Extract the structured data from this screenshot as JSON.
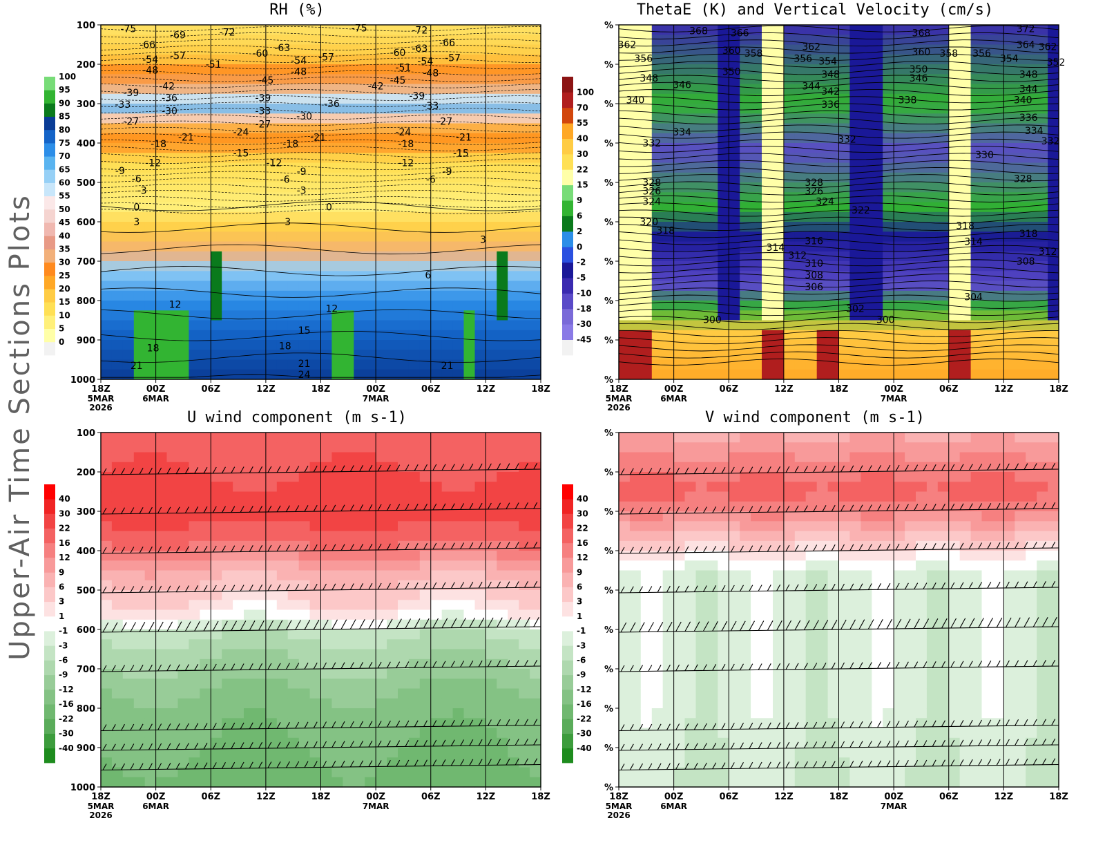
{
  "figure": {
    "side_title": "Upper-Air Time Sections Plots"
  },
  "time_axis": {
    "ticks": [
      "18Z",
      "00Z",
      "06Z",
      "12Z",
      "18Z",
      "00Z",
      "06Z",
      "12Z",
      "18Z"
    ],
    "date_labels": [
      {
        "tick": 0,
        "lines": [
          "5MAR",
          "2026"
        ]
      },
      {
        "tick": 1,
        "lines": [
          "6MAR"
        ]
      },
      {
        "tick": 5,
        "lines": [
          "7MAR"
        ]
      }
    ]
  },
  "chart_data": [
    {
      "id": "rh",
      "type": "heatmap",
      "title": "RH (%)",
      "y_ticks": [
        "100",
        "200",
        "300",
        "400",
        "500",
        "600",
        "700",
        "800",
        "900",
        "1000"
      ],
      "colorbar": {
        "side": "left",
        "levels": [
          "0",
          "5",
          "10",
          "15",
          "20",
          "25",
          "30",
          "35",
          "40",
          "45",
          "50",
          "55",
          "60",
          "65",
          "70",
          "75",
          "80",
          "85",
          "90",
          "95",
          "100"
        ],
        "colors": [
          "#f2f2f2",
          "#ffffa8",
          "#fff07a",
          "#ffe055",
          "#ffcc44",
          "#ffa826",
          "#ff8a1e",
          "#f2b07a",
          "#e89a86",
          "#f0b8b0",
          "#f5d4d0",
          "#fbe8e8",
          "#c8e6fa",
          "#96d0f6",
          "#5ab4f0",
          "#2c8ee8",
          "#1464c8",
          "#0a3c96",
          "#0a7a1c",
          "#32b432",
          "#78dc78"
        ]
      },
      "contour_labels": [
        {
          "t": 0.5,
          "p": 110,
          "text": "-75"
        },
        {
          "t": 1.4,
          "p": 125,
          "text": "-69"
        },
        {
          "t": 2.3,
          "p": 118,
          "text": "-72"
        },
        {
          "t": 4.7,
          "p": 108,
          "text": "-75"
        },
        {
          "t": 5.8,
          "p": 113,
          "text": "-72"
        },
        {
          "t": 0.85,
          "p": 150,
          "text": "-66"
        },
        {
          "t": 6.3,
          "p": 145,
          "text": "-66"
        },
        {
          "t": 2.9,
          "p": 172,
          "text": "-60"
        },
        {
          "t": 3.3,
          "p": 158,
          "text": "-63"
        },
        {
          "t": 5.4,
          "p": 170,
          "text": "-60"
        },
        {
          "t": 5.8,
          "p": 160,
          "text": "-63"
        },
        {
          "t": 0.9,
          "p": 188,
          "text": "-54"
        },
        {
          "t": 1.4,
          "p": 178,
          "text": "-57"
        },
        {
          "t": 2.05,
          "p": 200,
          "text": "-51"
        },
        {
          "t": 3.6,
          "p": 190,
          "text": "-54"
        },
        {
          "t": 4.1,
          "p": 182,
          "text": "-57"
        },
        {
          "t": 5.5,
          "p": 208,
          "text": "-51"
        },
        {
          "t": 6.4,
          "p": 183,
          "text": "-57"
        },
        {
          "t": 0.9,
          "p": 215,
          "text": "-48"
        },
        {
          "t": 3.0,
          "p": 240,
          "text": "-45"
        },
        {
          "t": 3.6,
          "p": 218,
          "text": "-48"
        },
        {
          "t": 5.4,
          "p": 240,
          "text": "-45"
        },
        {
          "t": 6.0,
          "p": 222,
          "text": "-48"
        },
        {
          "t": 5.9,
          "p": 192,
          "text": "-54"
        },
        {
          "t": 5.0,
          "p": 255,
          "text": "-42"
        },
        {
          "t": 1.2,
          "p": 255,
          "text": "-42"
        },
        {
          "t": 0.55,
          "p": 272,
          "text": "-39"
        },
        {
          "t": 1.25,
          "p": 285,
          "text": "-36"
        },
        {
          "t": 2.95,
          "p": 285,
          "text": "-39"
        },
        {
          "t": 4.2,
          "p": 300,
          "text": "-36"
        },
        {
          "t": 5.75,
          "p": 280,
          "text": "-39"
        },
        {
          "t": 0.4,
          "p": 302,
          "text": "-33"
        },
        {
          "t": 1.25,
          "p": 318,
          "text": "-30"
        },
        {
          "t": 2.95,
          "p": 318,
          "text": "-33"
        },
        {
          "t": 3.7,
          "p": 332,
          "text": "-30"
        },
        {
          "t": 6.0,
          "p": 305,
          "text": "-33"
        },
        {
          "t": 6.25,
          "p": 345,
          "text": "-27"
        },
        {
          "t": 0.55,
          "p": 345,
          "text": "-27"
        },
        {
          "t": 2.95,
          "p": 352,
          "text": "-27"
        },
        {
          "t": 2.55,
          "p": 372,
          "text": "-24"
        },
        {
          "t": 5.5,
          "p": 372,
          "text": "-24"
        },
        {
          "t": 1.55,
          "p": 385,
          "text": "-21"
        },
        {
          "t": 3.95,
          "p": 385,
          "text": "-21"
        },
        {
          "t": 6.6,
          "p": 385,
          "text": "-21"
        },
        {
          "t": 1.05,
          "p": 402,
          "text": "-18"
        },
        {
          "t": 3.45,
          "p": 402,
          "text": "-18"
        },
        {
          "t": 5.55,
          "p": 402,
          "text": "-18"
        },
        {
          "t": 2.55,
          "p": 425,
          "text": "-15"
        },
        {
          "t": 6.55,
          "p": 425,
          "text": "-15"
        },
        {
          "t": 0.95,
          "p": 450,
          "text": "-12"
        },
        {
          "t": 3.15,
          "p": 450,
          "text": "-12"
        },
        {
          "t": 5.55,
          "p": 450,
          "text": "-12"
        },
        {
          "t": 0.35,
          "p": 470,
          "text": "-9"
        },
        {
          "t": 3.65,
          "p": 472,
          "text": "-9"
        },
        {
          "t": 6.3,
          "p": 472,
          "text": "-9"
        },
        {
          "t": 0.65,
          "p": 490,
          "text": "-6"
        },
        {
          "t": 3.35,
          "p": 492,
          "text": "-6"
        },
        {
          "t": 6.0,
          "p": 492,
          "text": "-6"
        },
        {
          "t": 0.75,
          "p": 520,
          "text": "-3"
        },
        {
          "t": 3.65,
          "p": 520,
          "text": "-3"
        },
        {
          "t": 0.65,
          "p": 562,
          "text": "0"
        },
        {
          "t": 4.15,
          "p": 562,
          "text": "0"
        },
        {
          "t": 0.65,
          "p": 600,
          "text": "3"
        },
        {
          "t": 3.4,
          "p": 600,
          "text": "3"
        },
        {
          "t": 6.95,
          "p": 645,
          "text": "3"
        },
        {
          "t": 5.95,
          "p": 735,
          "text": "6"
        },
        {
          "t": 1.35,
          "p": 810,
          "text": "12"
        },
        {
          "t": 4.2,
          "p": 820,
          "text": "12"
        },
        {
          "t": 3.7,
          "p": 875,
          "text": "15"
        },
        {
          "t": 0.95,
          "p": 920,
          "text": "18"
        },
        {
          "t": 3.35,
          "p": 915,
          "text": "18"
        },
        {
          "t": 0.65,
          "p": 965,
          "text": "21"
        },
        {
          "t": 3.7,
          "p": 960,
          "text": "21"
        },
        {
          "t": 6.3,
          "p": 965,
          "text": "21"
        },
        {
          "t": 3.7,
          "p": 988,
          "text": "24"
        }
      ]
    },
    {
      "id": "thetae",
      "type": "heatmap",
      "title": "ThetaE (K) and Vertical Velocity (cm/s)",
      "y_ticks": [
        "%",
        "%",
        "%",
        "%",
        "%",
        "%",
        "%",
        "%",
        "%",
        "%"
      ],
      "colorbar": {
        "side": "left",
        "levels": [
          "-45",
          "-30",
          "-18",
          "-10",
          "-5",
          "-2",
          "0",
          "2",
          "6",
          "9",
          "15",
          "22",
          "30",
          "40",
          "55",
          "70",
          "100"
        ],
        "colors": [
          "#f2f2f2",
          "#8a7ae6",
          "#7a6ad8",
          "#5a4ac8",
          "#3a2ab0",
          "#1a1898",
          "#2a50e0",
          "#2c8ee8",
          "#0a7a1c",
          "#32b432",
          "#78dc78",
          "#ffffa8",
          "#ffe055",
          "#ffcc44",
          "#ffa826",
          "#d2460c",
          "#b01e1e",
          "#8c1414"
        ]
      },
      "contour_labels": [
        {
          "t": 1.45,
          "p": 115,
          "text": "368"
        },
        {
          "t": 2.2,
          "p": 120,
          "text": "366"
        },
        {
          "t": 5.5,
          "p": 120,
          "text": "368"
        },
        {
          "t": 7.4,
          "p": 110,
          "text": "372"
        },
        {
          "t": 0.15,
          "p": 150,
          "text": "362"
        },
        {
          "t": 0.45,
          "p": 185,
          "text": "356"
        },
        {
          "t": 2.05,
          "p": 165,
          "text": "360"
        },
        {
          "t": 2.45,
          "p": 172,
          "text": "358"
        },
        {
          "t": 3.5,
          "p": 155,
          "text": "362"
        },
        {
          "t": 3.35,
          "p": 185,
          "text": "356"
        },
        {
          "t": 3.8,
          "p": 192,
          "text": "354"
        },
        {
          "t": 5.5,
          "p": 168,
          "text": "360"
        },
        {
          "t": 6.0,
          "p": 172,
          "text": "358"
        },
        {
          "t": 6.6,
          "p": 172,
          "text": "356"
        },
        {
          "t": 7.1,
          "p": 185,
          "text": "354"
        },
        {
          "t": 7.4,
          "p": 150,
          "text": "364"
        },
        {
          "t": 7.8,
          "p": 155,
          "text": "362"
        },
        {
          "t": 7.95,
          "p": 195,
          "text": "352"
        },
        {
          "t": 2.05,
          "p": 218,
          "text": "350"
        },
        {
          "t": 3.85,
          "p": 225,
          "text": "348"
        },
        {
          "t": 5.45,
          "p": 212,
          "text": "350"
        },
        {
          "t": 5.45,
          "p": 235,
          "text": "346"
        },
        {
          "t": 7.45,
          "p": 225,
          "text": "348"
        },
        {
          "t": 7.45,
          "p": 262,
          "text": "344"
        },
        {
          "t": 0.55,
          "p": 235,
          "text": "348"
        },
        {
          "t": 1.15,
          "p": 252,
          "text": "346"
        },
        {
          "t": 3.5,
          "p": 255,
          "text": "344"
        },
        {
          "t": 3.85,
          "p": 268,
          "text": "342"
        },
        {
          "t": 5.25,
          "p": 290,
          "text": "338"
        },
        {
          "t": 3.85,
          "p": 302,
          "text": "336"
        },
        {
          "t": 7.35,
          "p": 290,
          "text": "340"
        },
        {
          "t": 0.3,
          "p": 290,
          "text": "340"
        },
        {
          "t": 7.45,
          "p": 335,
          "text": "336"
        },
        {
          "t": 7.55,
          "p": 368,
          "text": "334"
        },
        {
          "t": 1.15,
          "p": 372,
          "text": "334"
        },
        {
          "t": 0.6,
          "p": 400,
          "text": "332"
        },
        {
          "t": 4.15,
          "p": 390,
          "text": "332"
        },
        {
          "t": 7.85,
          "p": 395,
          "text": "332"
        },
        {
          "t": 6.65,
          "p": 430,
          "text": "330"
        },
        {
          "t": 0.6,
          "p": 500,
          "text": "328"
        },
        {
          "t": 3.55,
          "p": 500,
          "text": "328"
        },
        {
          "t": 7.35,
          "p": 490,
          "text": "328"
        },
        {
          "t": 0.6,
          "p": 522,
          "text": "326"
        },
        {
          "t": 3.55,
          "p": 522,
          "text": "326"
        },
        {
          "t": 0.6,
          "p": 548,
          "text": "324"
        },
        {
          "t": 3.75,
          "p": 548,
          "text": "324"
        },
        {
          "t": 4.4,
          "p": 570,
          "text": "322"
        },
        {
          "t": 0.55,
          "p": 600,
          "text": "320"
        },
        {
          "t": 0.85,
          "p": 622,
          "text": "318"
        },
        {
          "t": 6.3,
          "p": 610,
          "text": "318"
        },
        {
          "t": 7.45,
          "p": 630,
          "text": "318"
        },
        {
          "t": 6.45,
          "p": 650,
          "text": "314"
        },
        {
          "t": 2.85,
          "p": 665,
          "text": "314"
        },
        {
          "t": 3.55,
          "p": 648,
          "text": "316"
        },
        {
          "t": 3.25,
          "p": 685,
          "text": "312"
        },
        {
          "t": 7.8,
          "p": 675,
          "text": "312"
        },
        {
          "t": 7.4,
          "p": 700,
          "text": "308"
        },
        {
          "t": 3.55,
          "p": 705,
          "text": "310"
        },
        {
          "t": 3.55,
          "p": 735,
          "text": "308"
        },
        {
          "t": 3.55,
          "p": 765,
          "text": "306"
        },
        {
          "t": 6.45,
          "p": 790,
          "text": "304"
        },
        {
          "t": 4.3,
          "p": 820,
          "text": "302"
        },
        {
          "t": 1.7,
          "p": 848,
          "text": "300"
        },
        {
          "t": 4.85,
          "p": 848,
          "text": "300"
        }
      ]
    },
    {
      "id": "u",
      "type": "heatmap",
      "title": "U wind component (m s-1)",
      "y_ticks": [
        "100",
        "200",
        "300",
        "400",
        "500",
        "600",
        "700",
        "800",
        "900",
        "1000"
      ],
      "colorbar": {
        "side": "left",
        "levels": [
          "-40",
          "-30",
          "-22",
          "-16",
          "-12",
          "-9",
          "-6",
          "-3",
          "-1",
          "1",
          "3",
          "6",
          "9",
          "12",
          "16",
          "22",
          "30",
          "40"
        ],
        "colors": [
          "#1e8c1e",
          "#3c9c3c",
          "#5aac5a",
          "#70b870",
          "#84c284",
          "#98cc98",
          "#aed8ae",
          "#c4e4c4",
          "#dcf0dc",
          "#ffffff",
          "#fde2e2",
          "#fcc8c8",
          "#fab2b2",
          "#f89a9a",
          "#f68080",
          "#f46262",
          "#f24444",
          "#f02424",
          "#ff0000"
        ]
      }
    },
    {
      "id": "v",
      "type": "heatmap",
      "title": "V wind component (m s-1)",
      "y_ticks": [
        "%",
        "%",
        "%",
        "%",
        "%",
        "%",
        "%",
        "%",
        "%",
        "%"
      ],
      "colorbar": {
        "side": "left",
        "levels": [
          "-40",
          "-30",
          "-22",
          "-16",
          "-12",
          "-9",
          "-6",
          "-3",
          "-1",
          "1",
          "3",
          "6",
          "9",
          "12",
          "16",
          "22",
          "30",
          "40"
        ],
        "colors": [
          "#1e8c1e",
          "#3c9c3c",
          "#5aac5a",
          "#70b870",
          "#84c284",
          "#98cc98",
          "#aed8ae",
          "#c4e4c4",
          "#dcf0dc",
          "#ffffff",
          "#fde2e2",
          "#fcc8c8",
          "#fab2b2",
          "#f89a9a",
          "#f68080",
          "#f46262",
          "#f24444",
          "#f02424",
          "#ff0000"
        ]
      }
    }
  ]
}
